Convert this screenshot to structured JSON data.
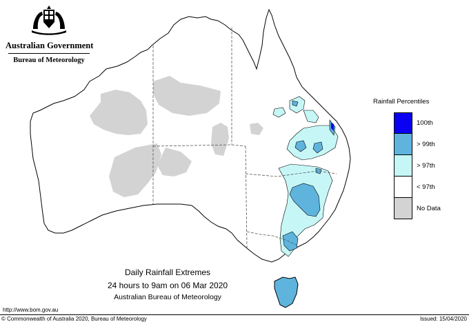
{
  "header": {
    "government": "Australian Government",
    "agency": "Bureau of Meteorology"
  },
  "map": {
    "title": "Daily Rainfall Extremes",
    "period": "24 hours to 9am on 06 Mar 2020",
    "source": "Australian Bureau of Meteorology"
  },
  "legend": {
    "title": "Rainfall Percentiles",
    "items": [
      {
        "label": "100th",
        "color": "#0a00f2"
      },
      {
        "label": "> 99th",
        "color": "#5fb4de"
      },
      {
        "label": "> 97th",
        "color": "#c6f7f6"
      },
      {
        "label": "< 97th",
        "color": "#ffffff"
      },
      {
        "label": "No Data",
        "color": "#d3d3d3"
      }
    ]
  },
  "footer": {
    "url": "http://www.bom.gov.au",
    "copyright": "© Commonwealth of Australia 2020, Bureau of Meteorology",
    "issued": "Issued: 15/04/2020"
  }
}
